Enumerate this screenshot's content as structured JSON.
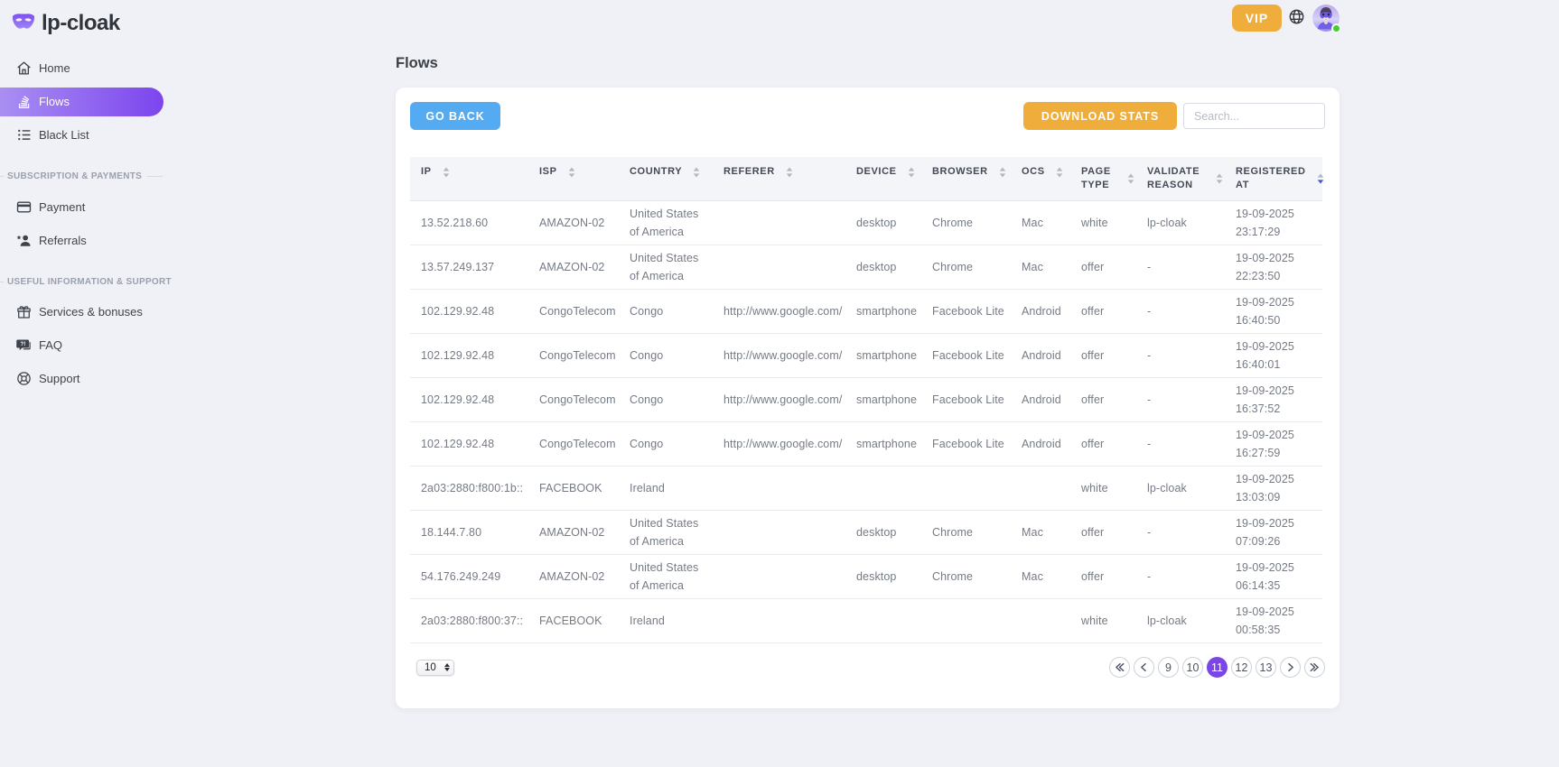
{
  "brand": {
    "name": "lp-cloak"
  },
  "topbar": {
    "vip_label": "VIP",
    "avatar_status": "online"
  },
  "page": {
    "title": "Flows"
  },
  "sidebar": {
    "groups": [
      {
        "heading": "",
        "items": [
          {
            "label": "Home",
            "icon": "home-icon",
            "active": false
          },
          {
            "label": "Flows",
            "icon": "flows-icon",
            "active": true
          },
          {
            "label": "Black List",
            "icon": "blacklist-icon",
            "active": false
          }
        ]
      },
      {
        "heading": "Subscription & Payments",
        "items": [
          {
            "label": "Payment",
            "icon": "payment-icon",
            "active": false
          },
          {
            "label": "Referrals",
            "icon": "referrals-icon",
            "active": false
          }
        ]
      },
      {
        "heading": "Useful information & support",
        "items": [
          {
            "label": "Services & bonuses",
            "icon": "gift-icon",
            "active": false
          },
          {
            "label": "FAQ",
            "icon": "faq-icon",
            "active": false
          },
          {
            "label": "Support",
            "icon": "support-icon",
            "active": false
          }
        ]
      }
    ]
  },
  "toolbar": {
    "go_back_label": "GO BACK",
    "download_stats_label": "DOWNLOAD STATS",
    "search_placeholder": "Search...",
    "search_value": ""
  },
  "table": {
    "columns": [
      {
        "label": "IP",
        "sort": "none"
      },
      {
        "label": "ISP",
        "sort": "none"
      },
      {
        "label": "Country",
        "sort": "none"
      },
      {
        "label": "Referer",
        "sort": "none"
      },
      {
        "label": "Device",
        "sort": "none"
      },
      {
        "label": "Browser",
        "sort": "none"
      },
      {
        "label": "OCS",
        "sort": "none"
      },
      {
        "label": "Page Type",
        "sort": "none"
      },
      {
        "label": "Validate Reason",
        "sort": "none"
      },
      {
        "label": "Registered At",
        "sort": "desc"
      }
    ],
    "rows": [
      [
        "13.52.218.60",
        "AMAZON-02",
        "United States of America",
        "",
        "desktop",
        "Chrome",
        "Mac",
        "white",
        "lp-cloak",
        "19-09-2025 23:17:29"
      ],
      [
        "13.57.249.137",
        "AMAZON-02",
        "United States of America",
        "",
        "desktop",
        "Chrome",
        "Mac",
        "offer",
        "-",
        "19-09-2025 22:23:50"
      ],
      [
        "102.129.92.48",
        "CongoTelecom",
        "Congo",
        "http://www.google.com/",
        "smartphone",
        "Facebook Lite",
        "Android",
        "offer",
        "-",
        "19-09-2025 16:40:50"
      ],
      [
        "102.129.92.48",
        "CongoTelecom",
        "Congo",
        "http://www.google.com/",
        "smartphone",
        "Facebook Lite",
        "Android",
        "offer",
        "-",
        "19-09-2025 16:40:01"
      ],
      [
        "102.129.92.48",
        "CongoTelecom",
        "Congo",
        "http://www.google.com/",
        "smartphone",
        "Facebook Lite",
        "Android",
        "offer",
        "-",
        "19-09-2025 16:37:52"
      ],
      [
        "102.129.92.48",
        "CongoTelecom",
        "Congo",
        "http://www.google.com/",
        "smartphone",
        "Facebook Lite",
        "Android",
        "offer",
        "-",
        "19-09-2025 16:27:59"
      ],
      [
        "2a03:2880:f800:1b::",
        "FACEBOOK",
        "Ireland",
        "",
        "",
        "",
        "",
        "white",
        "lp-cloak",
        "19-09-2025 13:03:09"
      ],
      [
        "18.144.7.80",
        "AMAZON-02",
        "United States of America",
        "",
        "desktop",
        "Chrome",
        "Mac",
        "offer",
        "-",
        "19-09-2025 07:09:26"
      ],
      [
        "54.176.249.249",
        "AMAZON-02",
        "United States of America",
        "",
        "desktop",
        "Chrome",
        "Mac",
        "offer",
        "-",
        "19-09-2025 06:14:35"
      ],
      [
        "2a03:2880:f800:37::",
        "FACEBOOK",
        "Ireland",
        "",
        "",
        "",
        "",
        "white",
        "lp-cloak",
        "19-09-2025 00:58:35"
      ]
    ]
  },
  "footer": {
    "page_size_value": "10",
    "pagination": [
      {
        "kind": "icon",
        "icon": "chevrons-left-icon",
        "name": "first-page-button"
      },
      {
        "kind": "icon",
        "icon": "chevron-left-icon",
        "name": "prev-page-button"
      },
      {
        "kind": "page",
        "label": "9",
        "active": false
      },
      {
        "kind": "page",
        "label": "10",
        "active": false
      },
      {
        "kind": "page",
        "label": "11",
        "active": true
      },
      {
        "kind": "page",
        "label": "12",
        "active": false
      },
      {
        "kind": "page",
        "label": "13",
        "active": false
      },
      {
        "kind": "icon",
        "icon": "chevron-right-icon",
        "name": "next-page-button"
      },
      {
        "kind": "icon",
        "icon": "chevrons-right-icon",
        "name": "last-page-button"
      }
    ]
  },
  "colors": {
    "accent_purple": "#7c45ee",
    "amber": "#efae3c",
    "blue": "#55abf2",
    "green_status": "#46cb30",
    "sort_active_blue": "#3b5bdb"
  }
}
